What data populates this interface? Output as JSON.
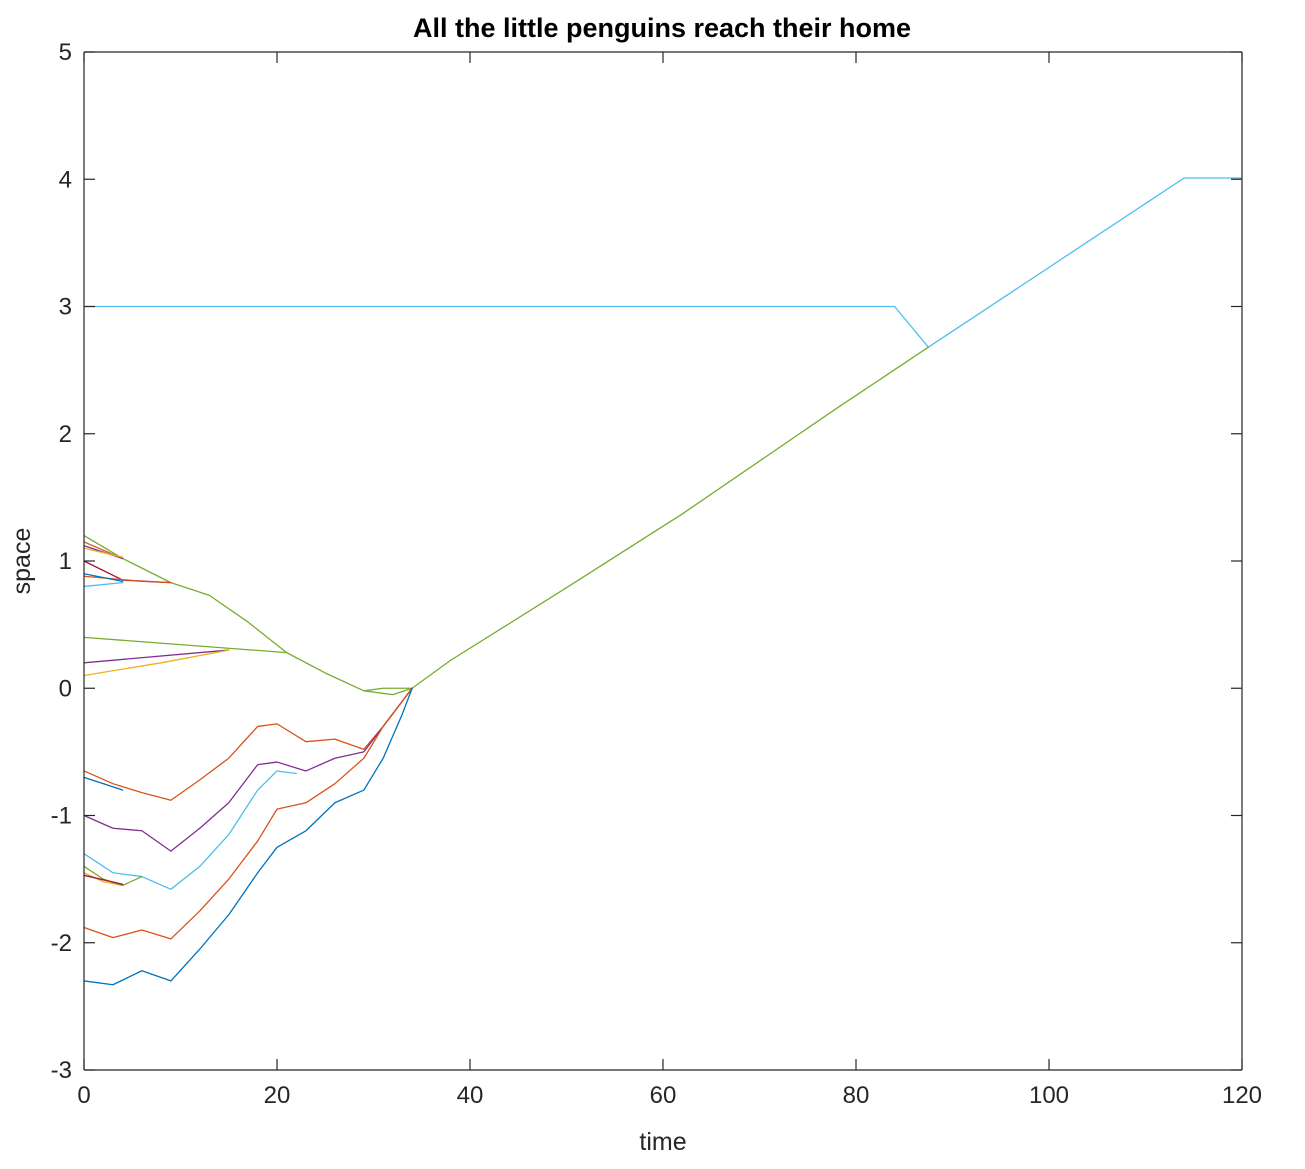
{
  "chart_data": {
    "type": "line",
    "title": "All the little penguins reach their home",
    "xlabel": "time",
    "ylabel": "space",
    "xlim": [
      0,
      120
    ],
    "ylim": [
      -3,
      5
    ],
    "xticks": [
      0,
      20,
      40,
      60,
      80,
      100,
      120
    ],
    "yticks": [
      -3,
      -2,
      -1,
      0,
      1,
      2,
      3,
      4,
      5
    ],
    "grid": false,
    "legend": "none",
    "series": [
      {
        "color": "#4DBEEE",
        "points": [
          [
            0,
            3
          ],
          [
            84,
            3
          ],
          [
            87.5,
            2.68
          ],
          [
            114,
            4.01
          ],
          [
            120,
            4.01
          ]
        ]
      },
      {
        "color": "#77AC30",
        "points": [
          [
            0,
            1.2
          ],
          [
            4,
            1.02
          ],
          [
            9,
            0.83
          ],
          [
            13,
            0.73
          ],
          [
            17,
            0.52
          ],
          [
            21,
            0.28
          ],
          [
            25,
            0.12
          ],
          [
            29,
            -0.02
          ],
          [
            31,
            0.0
          ],
          [
            33,
            0.0
          ],
          [
            34,
            0.0
          ],
          [
            38,
            0.22
          ],
          [
            50,
            0.79
          ],
          [
            62,
            1.37
          ],
          [
            78,
            2.2
          ],
          [
            87.5,
            2.68
          ]
        ]
      },
      {
        "color": "#D95319",
        "points": [
          [
            0,
            1.15
          ],
          [
            4,
            1.02
          ]
        ]
      },
      {
        "color": "#7E2F8E",
        "points": [
          [
            0,
            1.12
          ],
          [
            4,
            1.02
          ]
        ]
      },
      {
        "color": "#A2142F",
        "points": [
          [
            0,
            1.0
          ],
          [
            4,
            0.85
          ],
          [
            9,
            0.83
          ]
        ]
      },
      {
        "color": "#EDB120",
        "points": [
          [
            0,
            1.1
          ],
          [
            4,
            1.03
          ]
        ]
      },
      {
        "color": "#D95319",
        "points": [
          [
            0,
            0.88
          ],
          [
            6,
            0.84
          ],
          [
            9,
            0.83
          ]
        ]
      },
      {
        "color": "#0072BD",
        "points": [
          [
            0,
            0.9
          ],
          [
            4,
            0.84
          ]
        ]
      },
      {
        "color": "#4DBEEE",
        "points": [
          [
            0,
            0.8
          ],
          [
            4,
            0.83
          ]
        ]
      },
      {
        "color": "#77AC30",
        "points": [
          [
            0,
            0.4
          ],
          [
            21,
            0.28
          ]
        ]
      },
      {
        "color": "#7E2F8E",
        "points": [
          [
            0,
            0.2
          ],
          [
            15,
            0.3
          ]
        ]
      },
      {
        "color": "#EDB120",
        "points": [
          [
            0,
            0.1
          ],
          [
            8,
            0.2
          ],
          [
            15,
            0.3
          ]
        ]
      },
      {
        "color": "#77AC30",
        "points": [
          [
            29,
            -0.02
          ],
          [
            32,
            -0.05
          ],
          [
            34,
            0.0
          ]
        ]
      },
      {
        "color": "#D95319",
        "points": [
          [
            0,
            -0.65
          ],
          [
            3,
            -0.75
          ],
          [
            6,
            -0.82
          ],
          [
            9,
            -0.88
          ],
          [
            12,
            -0.72
          ],
          [
            15,
            -0.55
          ],
          [
            18,
            -0.3
          ],
          [
            20,
            -0.28
          ],
          [
            23,
            -0.42
          ],
          [
            26,
            -0.4
          ],
          [
            29,
            -0.48
          ],
          [
            31,
            -0.3
          ],
          [
            33,
            -0.1
          ],
          [
            34,
            0.0
          ]
        ]
      },
      {
        "color": "#0072BD",
        "points": [
          [
            0,
            -0.7
          ],
          [
            4,
            -0.8
          ]
        ]
      },
      {
        "color": "#7E2F8E",
        "points": [
          [
            0,
            -1.0
          ],
          [
            3,
            -1.1
          ],
          [
            6,
            -1.12
          ],
          [
            9,
            -1.28
          ],
          [
            12,
            -1.1
          ],
          [
            15,
            -0.9
          ],
          [
            18,
            -0.6
          ],
          [
            20,
            -0.58
          ],
          [
            23,
            -0.65
          ],
          [
            26,
            -0.55
          ],
          [
            29,
            -0.5
          ],
          [
            31,
            -0.3
          ],
          [
            33,
            -0.1
          ],
          [
            34,
            0.0
          ]
        ]
      },
      {
        "color": "#4DBEEE",
        "points": [
          [
            0,
            -1.3
          ],
          [
            3,
            -1.45
          ],
          [
            6,
            -1.48
          ],
          [
            9,
            -1.58
          ],
          [
            12,
            -1.4
          ],
          [
            15,
            -1.15
          ],
          [
            18,
            -0.8
          ],
          [
            20,
            -0.65
          ],
          [
            22,
            -0.67
          ]
        ]
      },
      {
        "color": "#EDB120",
        "points": [
          [
            0,
            -1.45
          ],
          [
            2,
            -1.52
          ],
          [
            4,
            -1.55
          ]
        ]
      },
      {
        "color": "#77AC30",
        "points": [
          [
            0,
            -1.4
          ],
          [
            2,
            -1.5
          ],
          [
            4,
            -1.55
          ],
          [
            6,
            -1.48
          ]
        ]
      },
      {
        "color": "#A2142F",
        "points": [
          [
            0,
            -1.47
          ],
          [
            4,
            -1.54
          ]
        ]
      },
      {
        "color": "#D95319",
        "points": [
          [
            0,
            -1.88
          ],
          [
            3,
            -1.96
          ],
          [
            6,
            -1.9
          ],
          [
            9,
            -1.97
          ],
          [
            12,
            -1.75
          ],
          [
            15,
            -1.5
          ],
          [
            18,
            -1.2
          ],
          [
            20,
            -0.95
          ],
          [
            23,
            -0.9
          ],
          [
            26,
            -0.75
          ],
          [
            29,
            -0.55
          ],
          [
            31,
            -0.3
          ],
          [
            33,
            -0.1
          ],
          [
            34,
            0.0
          ]
        ]
      },
      {
        "color": "#0072BD",
        "points": [
          [
            0,
            -2.3
          ],
          [
            3,
            -2.33
          ],
          [
            6,
            -2.22
          ],
          [
            9,
            -2.3
          ],
          [
            12,
            -2.05
          ],
          [
            15,
            -1.78
          ],
          [
            18,
            -1.45
          ],
          [
            20,
            -1.25
          ],
          [
            23,
            -1.12
          ],
          [
            26,
            -0.9
          ],
          [
            29,
            -0.8
          ],
          [
            31,
            -0.55
          ],
          [
            33,
            -0.2
          ],
          [
            34,
            0.0
          ]
        ]
      }
    ]
  }
}
